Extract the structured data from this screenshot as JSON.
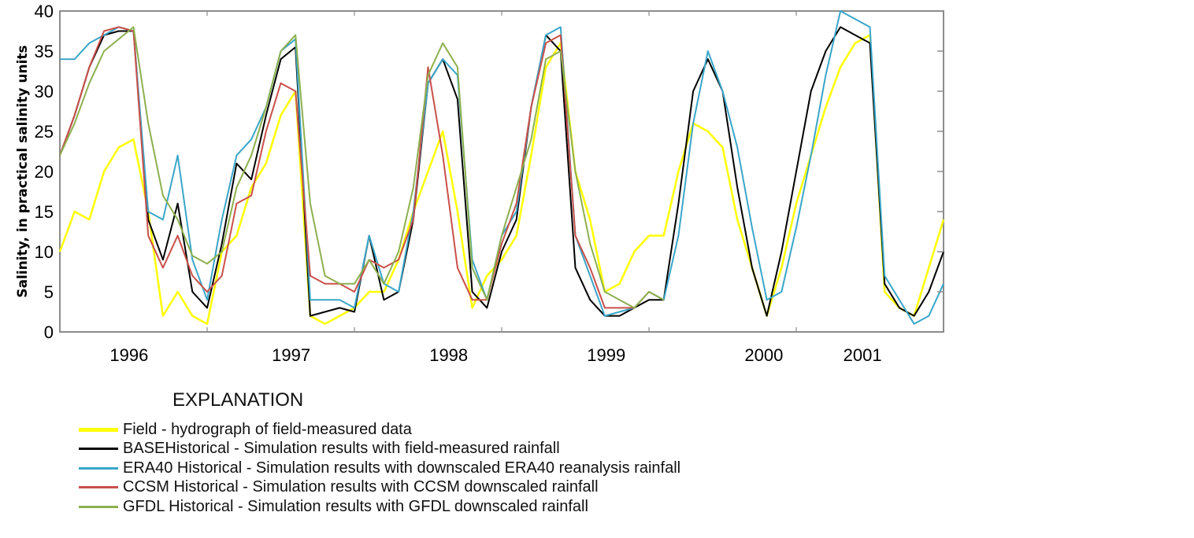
{
  "chart_data": {
    "type": "line",
    "title": "",
    "xlabel": "",
    "ylabel": "Salinity, in practical salinity units",
    "ylim": [
      0,
      40
    ],
    "yticks": [
      0,
      5,
      10,
      15,
      20,
      25,
      30,
      35,
      40
    ],
    "xlim": [
      0,
      60
    ],
    "x_unit": "approximate months from start of record",
    "x_tick_marks": [
      10,
      20,
      30,
      40,
      50
    ],
    "x_tick_labels": [
      {
        "label": "1996",
        "x": 4.7
      },
      {
        "label": "1997",
        "x": 15.7
      },
      {
        "label": "1998",
        "x": 26.4
      },
      {
        "label": "1999",
        "x": 37.1
      },
      {
        "label": "2000",
        "x": 47.8
      },
      {
        "label": "2001",
        "x": 54.5
      }
    ],
    "grid": false,
    "x": [
      0,
      1,
      2,
      3,
      4,
      5,
      6,
      7,
      8,
      9,
      10,
      11,
      12,
      13,
      14,
      15,
      16,
      17,
      18,
      19,
      20,
      21,
      22,
      23,
      24,
      25,
      26,
      27,
      28,
      29,
      30,
      31,
      32,
      33,
      34,
      35,
      36,
      37,
      38,
      39,
      40,
      41,
      42,
      43,
      44,
      45,
      46,
      47,
      48,
      49,
      50,
      51,
      52,
      53,
      54,
      55,
      56,
      57,
      58,
      59,
      60
    ],
    "series": [
      {
        "key": "field",
        "name": "Field",
        "color": "#ffff00",
        "values": [
          10,
          15,
          14,
          20,
          23,
          24,
          15,
          2,
          5,
          2,
          1,
          10,
          12,
          18,
          21,
          27,
          30,
          2,
          1,
          2,
          3,
          5,
          5,
          9,
          15,
          20,
          25,
          15,
          3,
          7,
          9,
          12,
          22,
          33,
          36,
          20,
          14,
          5,
          6,
          10,
          12,
          12,
          20,
          26,
          25,
          23,
          14,
          8,
          2,
          8,
          16,
          22,
          28,
          33,
          36,
          37,
          5,
          3,
          2,
          8,
          14
        ]
      },
      {
        "key": "base",
        "name": "BASEHistorical",
        "color": "#000000",
        "values": [
          22,
          27,
          33,
          37,
          37.5,
          37.5,
          14,
          9,
          16,
          5,
          3,
          11,
          21,
          19,
          27,
          34,
          35.5,
          2,
          2.5,
          3,
          2.5,
          12,
          4,
          5,
          14,
          31,
          34,
          29,
          5,
          3,
          10,
          14,
          28,
          37,
          35,
          8,
          4,
          2,
          2,
          3,
          4,
          4,
          16,
          30,
          34,
          30,
          18,
          8,
          2,
          10,
          20,
          30,
          35,
          38,
          37,
          36,
          6,
          3,
          2,
          5,
          10
        ]
      },
      {
        "key": "era40",
        "name": "ERA40 Historical",
        "color": "#3aa6c9",
        "values": [
          34,
          34,
          36,
          37,
          38,
          37.5,
          15,
          14,
          22,
          9,
          4,
          14,
          22,
          24,
          28,
          35,
          36.5,
          4,
          4,
          4,
          3,
          12,
          6,
          5,
          15,
          31,
          34,
          32,
          9,
          4,
          12,
          15,
          28,
          37,
          38,
          12,
          7,
          2,
          2.5,
          3,
          5,
          4,
          12,
          26,
          35,
          30,
          23,
          13,
          4,
          5,
          13,
          22,
          32,
          40,
          39,
          38,
          7,
          4,
          1,
          2,
          6
        ]
      },
      {
        "key": "ccsm",
        "name": "CCSM Historical",
        "color": "#c9504a",
        "values": [
          22,
          27,
          33,
          37.5,
          38,
          37.5,
          12,
          8,
          12,
          7,
          5,
          7,
          16,
          17,
          25,
          31,
          30,
          7,
          6,
          6,
          5,
          9,
          8,
          9,
          14,
          33,
          22,
          8,
          4,
          4,
          11,
          16,
          28,
          36,
          37,
          12,
          8,
          3,
          3,
          3,
          5,
          4,
          null,
          null,
          null,
          null,
          null,
          null,
          null,
          null,
          null,
          null,
          null,
          null,
          null,
          null,
          null,
          null,
          null,
          null,
          null
        ]
      },
      {
        "key": "gfdl",
        "name": "GFDL Historical",
        "color": "#8db04f",
        "values": [
          22,
          26,
          31,
          35,
          36.5,
          38,
          26,
          17,
          14,
          9.5,
          8.5,
          10,
          18,
          22,
          28,
          35,
          37,
          16,
          7,
          6,
          6,
          9,
          6,
          10,
          18,
          32,
          36,
          33,
          8,
          4,
          12,
          18,
          24,
          34,
          35,
          20,
          11,
          5,
          4,
          3,
          5,
          4,
          null,
          null,
          null,
          null,
          null,
          null,
          null,
          null,
          null,
          null,
          null,
          null,
          null,
          null,
          null,
          null,
          null,
          null,
          null
        ]
      }
    ],
    "legend": {
      "title": "EXPLANATION",
      "placement": "bottom-left",
      "items": [
        {
          "color": "#ffff00",
          "label": "Field - hydrograph of field-measured data"
        },
        {
          "color": "#000000",
          "label": "BASEHistorical - Simulation results with field-measured rainfall"
        },
        {
          "color": "#3aa6c9",
          "label": "ERA40 Historical - Simulation results with downscaled ERA40 reanalysis rainfall"
        },
        {
          "color": "#c9504a",
          "label": "CCSM Historical - Simulation results with CCSM downscaled rainfall"
        },
        {
          "color": "#8db04f",
          "label": " GFDL Historical - Simulation results with GFDL downscaled rainfall"
        }
      ]
    }
  }
}
